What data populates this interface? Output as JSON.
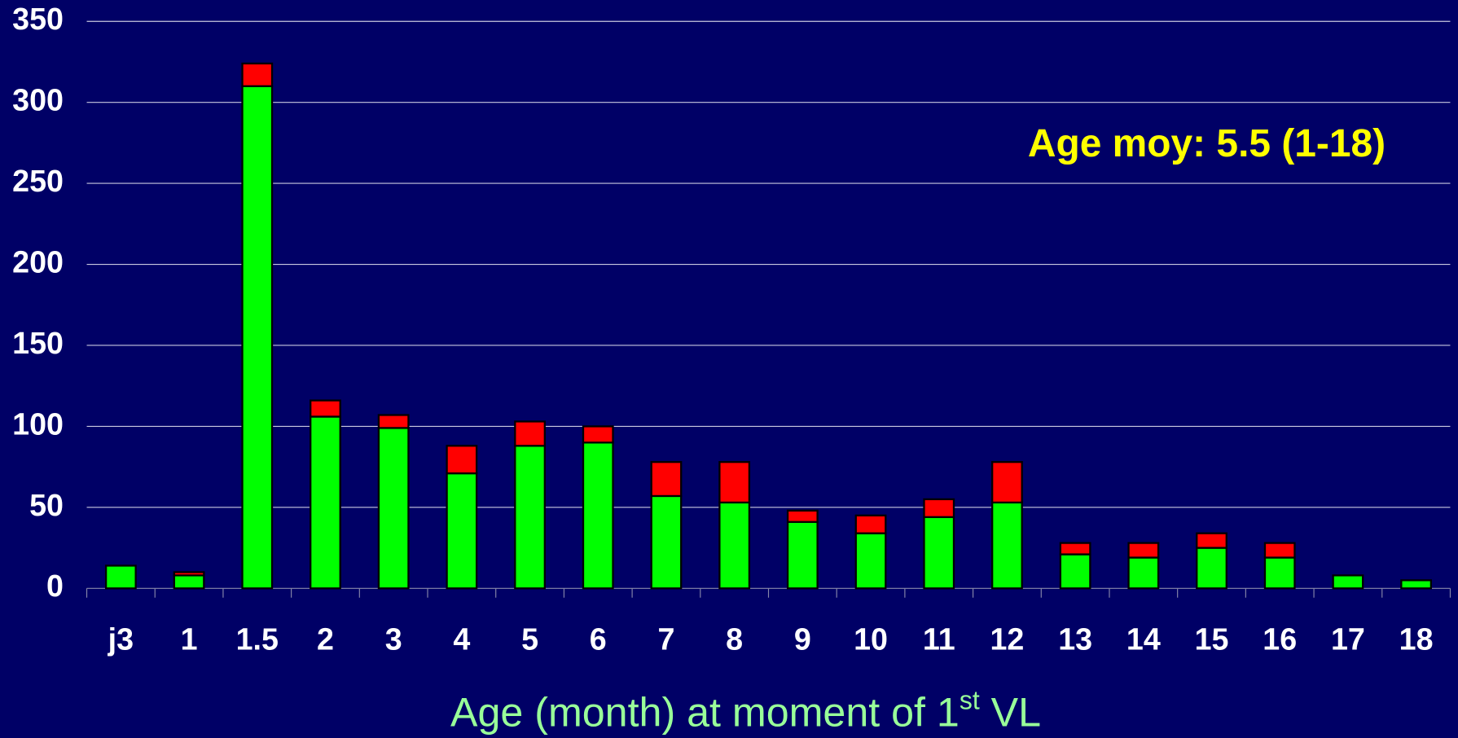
{
  "chart_data": {
    "type": "stacked_bar",
    "categories": [
      "j3",
      "1",
      "1.5",
      "2",
      "3",
      "4",
      "5",
      "6",
      "7",
      "8",
      "9",
      "10",
      "11",
      "12",
      "13",
      "14",
      "15",
      "16",
      "17",
      "18"
    ],
    "series": [
      {
        "color": "#00ff00",
        "values": [
          14,
          8,
          310,
          106,
          99,
          71,
          88,
          90,
          57,
          53,
          41,
          34,
          44,
          53,
          21,
          19,
          25,
          19,
          8,
          5
        ]
      },
      {
        "color": "#ff0000",
        "values": [
          0,
          2,
          14,
          10,
          8,
          17,
          15,
          10,
          21,
          25,
          7,
          11,
          11,
          25,
          7,
          9,
          9,
          9,
          0,
          0
        ]
      }
    ],
    "ylim": [
      0,
      350
    ],
    "yticks": [
      0,
      50,
      100,
      150,
      200,
      250,
      300,
      350
    ],
    "grid": true,
    "annotation": "Age moy: 5.5 (1-18)",
    "xlabel": [
      "Age (month) at moment of 1",
      "st",
      " VL"
    ]
  }
}
